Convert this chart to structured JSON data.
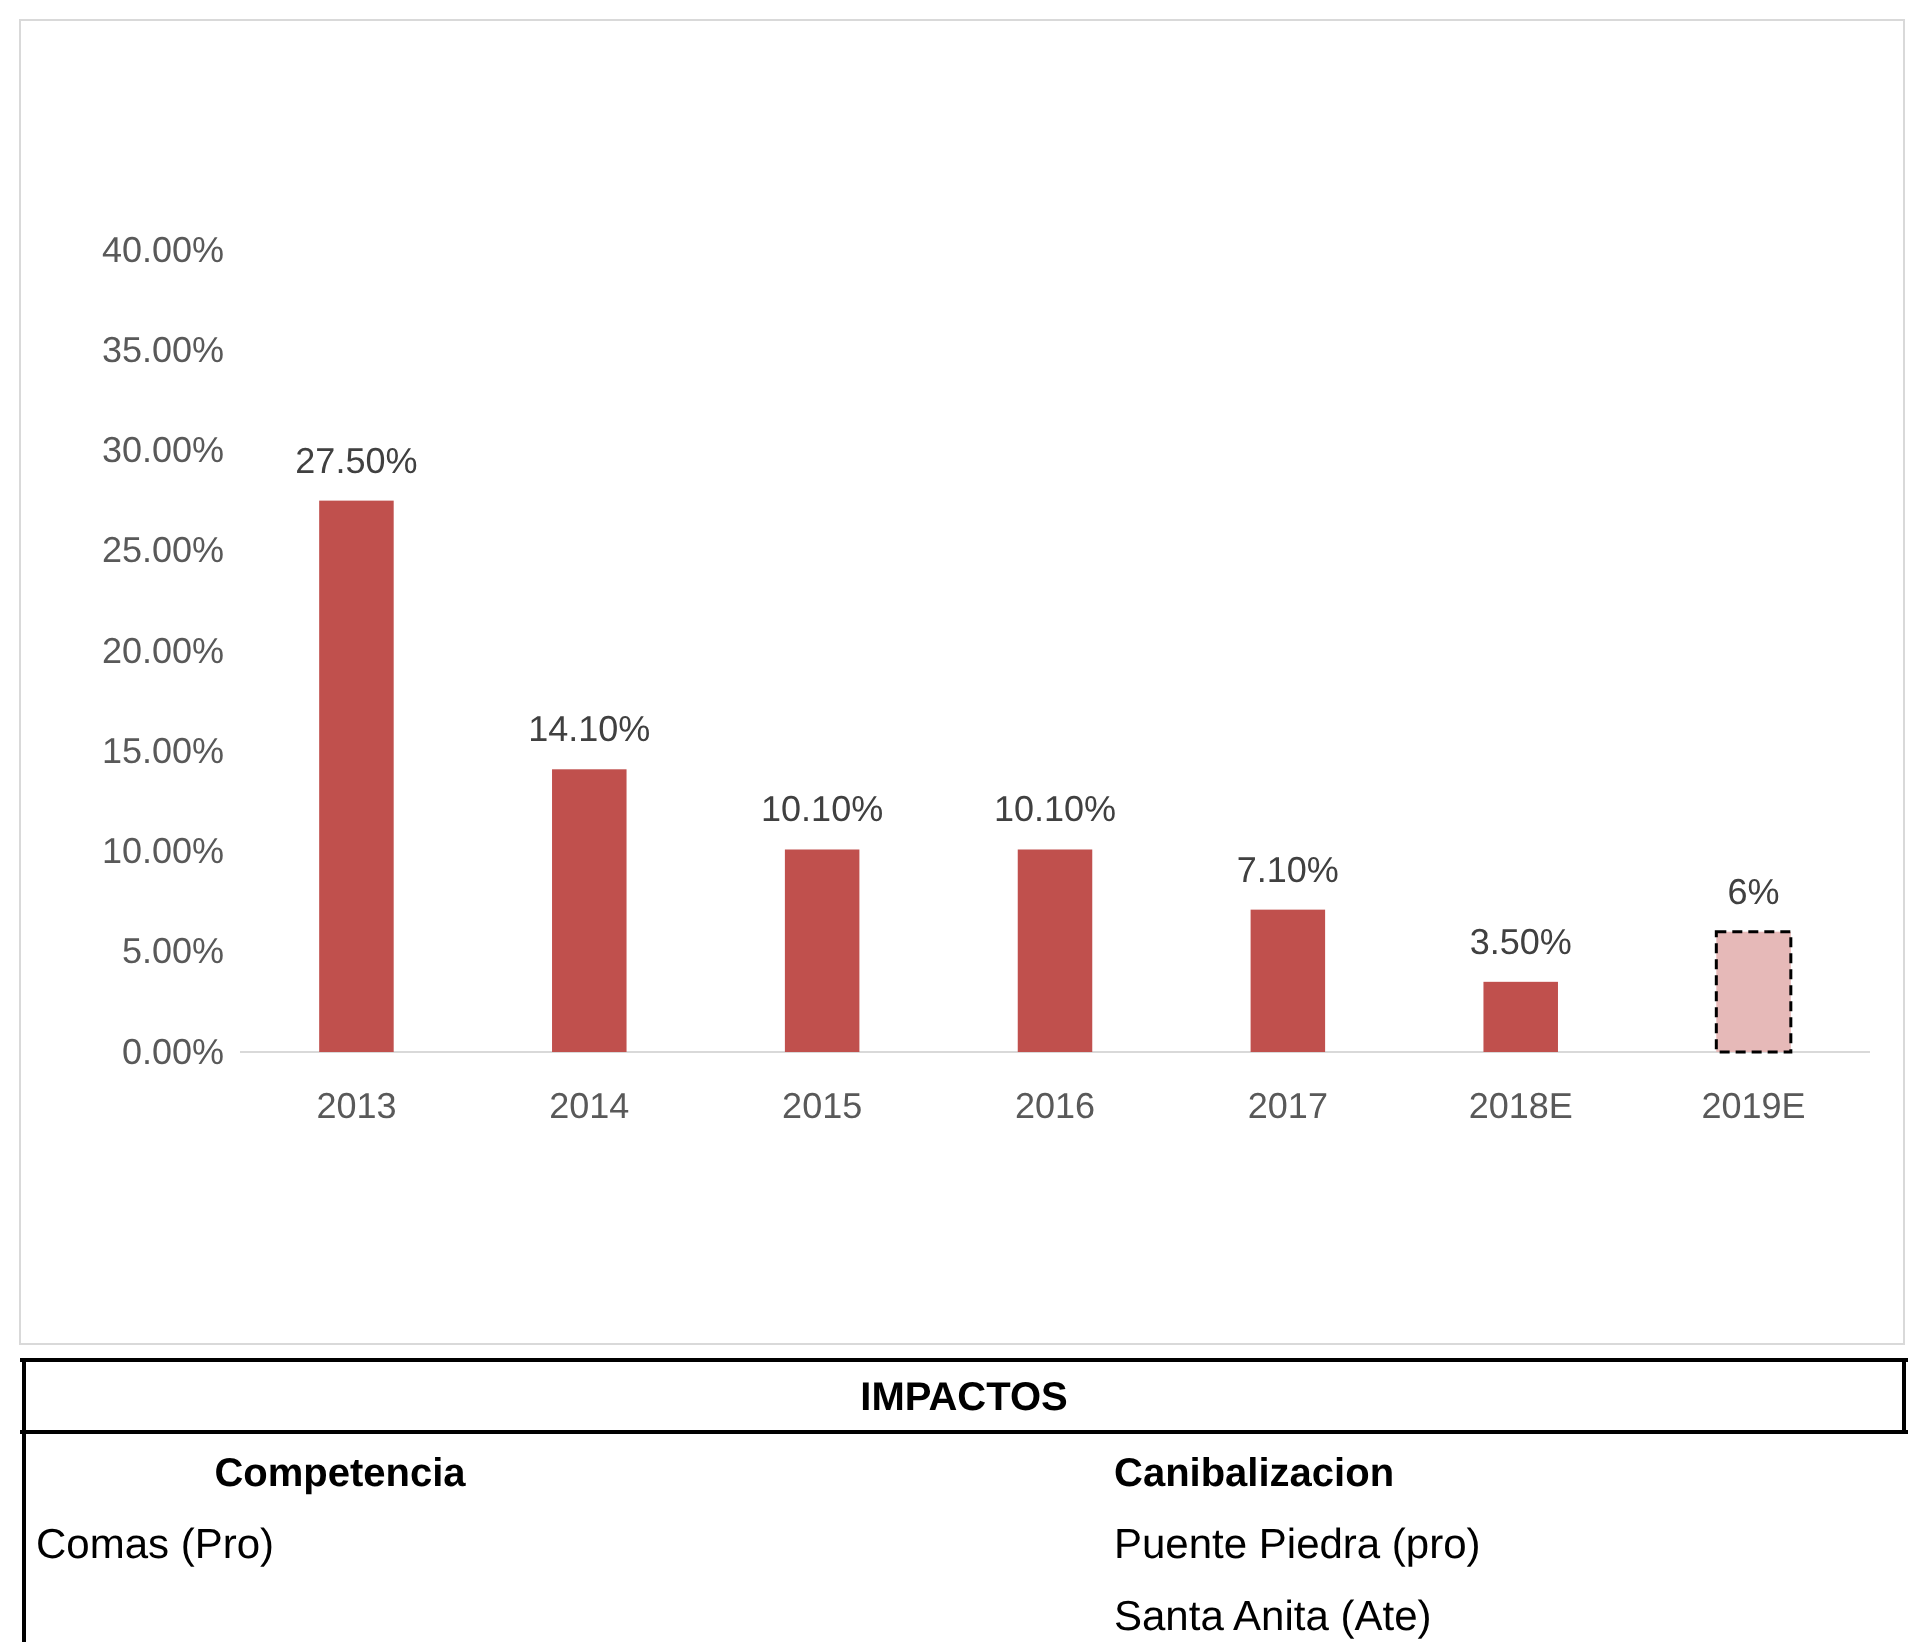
{
  "chart_data": {
    "type": "bar",
    "categories": [
      "2013",
      "2014",
      "2015",
      "2016",
      "2017",
      "2018E",
      "2019E"
    ],
    "series": [
      {
        "color": "#c0504d",
        "values": [
          27.5,
          14.1,
          10.1,
          10.1,
          7.1,
          3.5,
          null
        ],
        "value_labels": [
          "27.50%",
          "14.10%",
          "10.10%",
          "10.10%",
          "7.10%",
          "3.50%",
          null
        ]
      },
      {
        "color": "#e6b9b8",
        "line_style": "dashed",
        "values": [
          null,
          null,
          null,
          null,
          null,
          null,
          6
        ],
        "value_labels": [
          null,
          null,
          null,
          null,
          null,
          null,
          "6%"
        ]
      }
    ],
    "ylim": [
      0,
      40
    ],
    "yticks": [
      {
        "value": 0,
        "label": "0.00%"
      },
      {
        "value": 5,
        "label": "5.00%"
      },
      {
        "value": 10,
        "label": "10.00%"
      },
      {
        "value": 15,
        "label": "15.00%"
      },
      {
        "value": 20,
        "label": "20.00%"
      },
      {
        "value": 25,
        "label": "25.00%"
      },
      {
        "value": 30,
        "label": "30.00%"
      },
      {
        "value": 35,
        "label": "35.00%"
      },
      {
        "value": 40,
        "label": "40.00%"
      }
    ],
    "grid": false,
    "annotations": [
      "IMPACTOS",
      "Competencia",
      "Canibalizacion",
      "Comas (Pro)",
      "Puente Piedra (pro)",
      "Santa Anita (Ate)"
    ]
  }
}
